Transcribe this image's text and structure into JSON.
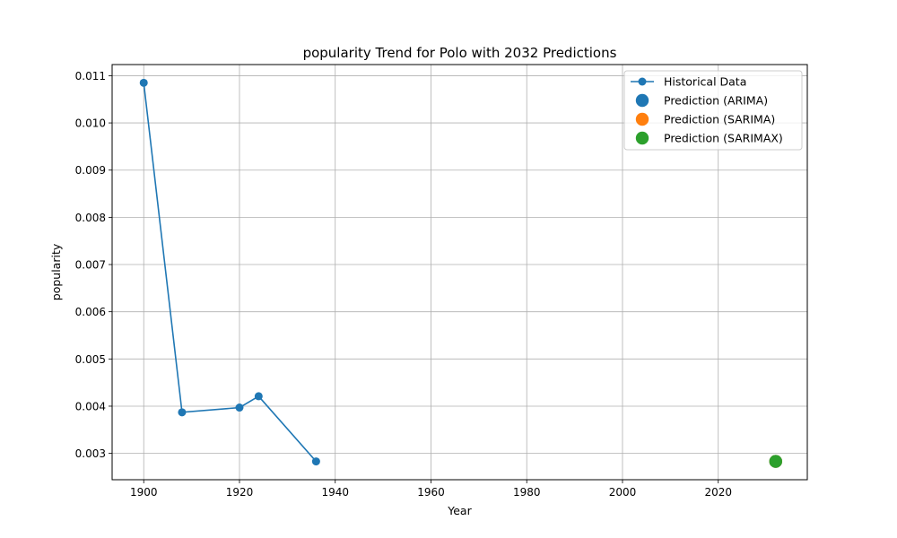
{
  "chart_data": {
    "type": "line",
    "title": "popularity Trend for Polo with 2032 Predictions",
    "xlabel": "Year",
    "ylabel": "popularity",
    "xlim": [
      1893.4,
      2038.6
    ],
    "ylim": [
      0.002442,
      0.011236
    ],
    "xticks": [
      1900,
      1920,
      1940,
      1960,
      1980,
      2000,
      2020
    ],
    "yticks": [
      0.003,
      0.004,
      0.005,
      0.006,
      0.007,
      0.008,
      0.009,
      0.01,
      0.011
    ],
    "ytick_labels": [
      "0.003",
      "0.004",
      "0.005",
      "0.006",
      "0.007",
      "0.008",
      "0.009",
      "0.010",
      "0.011"
    ],
    "grid": true,
    "legend_position": "top-right",
    "series": [
      {
        "name": "Historical Data",
        "kind": "line-marker",
        "color": "#1f77b4",
        "x": [
          1900,
          1908,
          1920,
          1924,
          1936
        ],
        "y": [
          0.01085,
          0.00387,
          0.00397,
          0.00421,
          0.00283
        ]
      },
      {
        "name": "Prediction (ARIMA)",
        "kind": "scatter",
        "color": "#1f77b4",
        "x": [
          2032
        ],
        "y": [
          0.00283
        ]
      },
      {
        "name": "Prediction (SARIMA)",
        "kind": "scatter",
        "color": "#ff7f0e",
        "x": [
          2032
        ],
        "y": [
          0.00283
        ]
      },
      {
        "name": "Prediction (SARIMAX)",
        "kind": "scatter",
        "color": "#2ca02c",
        "x": [
          2032
        ],
        "y": [
          0.00283
        ]
      }
    ]
  }
}
